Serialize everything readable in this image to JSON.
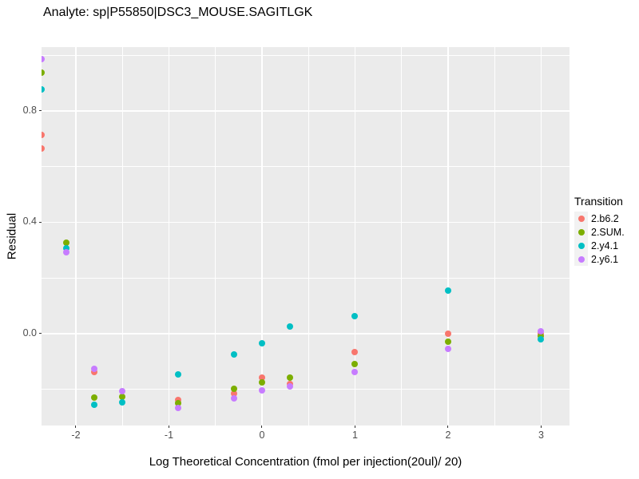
{
  "header": {
    "title": "Analyte: sp|P55850|DSC3_MOUSE.SAGITLGK"
  },
  "colors": {
    "panel_background": "#EBEBEB",
    "gridline": "#FFFFFF",
    "tick_label": "#4D4D4D",
    "text": "#000000",
    "legend_key_background": "#F2F2F2"
  },
  "chart_data": {
    "type": "scatter",
    "title": "Analyte: sp|P55850|DSC3_MOUSE.SAGITLGK",
    "xlabel": "Log Theoretical Concentration (fmol per injection(20ul)/ 20)",
    "ylabel": "Residual",
    "xlim": [
      -2.369,
      3.305
    ],
    "ylim": [
      -0.33,
      1.029
    ],
    "grid": "white major and minor gridlines on gray panel",
    "x_ticks": {
      "values": [
        -2,
        -1,
        0,
        1,
        2,
        3
      ],
      "labels": [
        "-2",
        "-1",
        "0",
        "1",
        "2",
        "3"
      ]
    },
    "y_ticks": {
      "values": [
        0.0,
        0.4,
        0.8
      ],
      "labels": [
        "0.0",
        "0.4",
        "0.8"
      ]
    },
    "x_minor": [
      -1.5,
      -0.5,
      0.5,
      1.5,
      2.5
    ],
    "y_minor": [
      -0.2,
      0.2,
      0.6,
      1.0
    ],
    "legend": {
      "title": "Transition",
      "position": "right"
    },
    "series": [
      {
        "name": "2.b6.2",
        "color": "#F8766D",
        "points": [
          [
            -2.37,
            0.714
          ],
          [
            -2.37,
            0.665
          ],
          [
            -1.8,
            -0.138
          ],
          [
            -0.9,
            -0.238
          ],
          [
            -0.3,
            -0.215
          ],
          [
            0.0,
            -0.158
          ],
          [
            0.3,
            -0.18
          ],
          [
            1.0,
            -0.066
          ],
          [
            2.0,
            0.0
          ],
          [
            3.0,
            0.0
          ]
        ]
      },
      {
        "name": "2.SUM.",
        "color": "#7CAE00",
        "points": [
          [
            -2.37,
            0.938
          ],
          [
            -2.1,
            0.327
          ],
          [
            -1.8,
            -0.229
          ],
          [
            -1.5,
            -0.227
          ],
          [
            -0.9,
            -0.25
          ],
          [
            -0.3,
            -0.198
          ],
          [
            0.0,
            -0.175
          ],
          [
            0.3,
            -0.158
          ],
          [
            1.0,
            -0.109
          ],
          [
            2.0,
            -0.029
          ],
          [
            3.0,
            -0.009
          ]
        ]
      },
      {
        "name": "2.y4.1",
        "color": "#00BFC4",
        "points": [
          [
            -2.37,
            0.877
          ],
          [
            -2.1,
            0.307
          ],
          [
            -1.8,
            -0.255
          ],
          [
            -1.5,
            -0.247
          ],
          [
            -0.9,
            -0.146
          ],
          [
            -0.3,
            -0.075
          ],
          [
            0.0,
            -0.034
          ],
          [
            0.3,
            0.026
          ],
          [
            1.0,
            0.063
          ],
          [
            2.0,
            0.155
          ],
          [
            3.0,
            -0.02
          ]
        ]
      },
      {
        "name": "2.y6.1",
        "color": "#C77CFF",
        "points": [
          [
            -2.37,
            0.986
          ],
          [
            -2.1,
            0.293
          ],
          [
            -1.8,
            -0.126
          ],
          [
            -1.5,
            -0.206
          ],
          [
            -0.9,
            -0.267
          ],
          [
            -0.3,
            -0.232
          ],
          [
            0.0,
            -0.204
          ],
          [
            0.3,
            -0.189
          ],
          [
            1.0,
            -0.138
          ],
          [
            2.0,
            -0.055
          ],
          [
            3.0,
            0.009
          ]
        ]
      }
    ]
  }
}
